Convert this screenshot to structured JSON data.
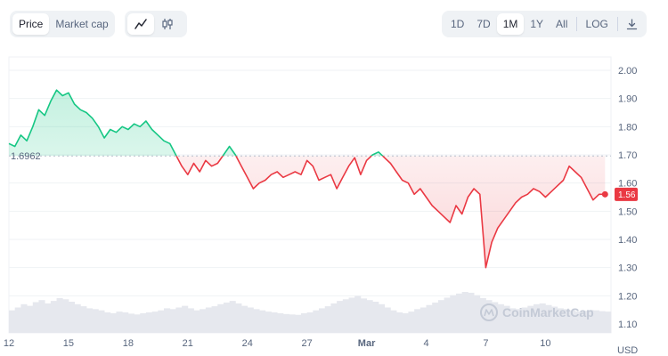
{
  "toolbar": {
    "metric_tabs": [
      {
        "label": "Price",
        "active": true
      },
      {
        "label": "Market cap",
        "active": false
      }
    ],
    "chart_types": [
      {
        "icon": "line-chart-icon",
        "active": true
      },
      {
        "icon": "candlestick-icon",
        "active": false
      }
    ],
    "ranges": [
      {
        "label": "1D",
        "active": false
      },
      {
        "label": "7D",
        "active": false
      },
      {
        "label": "1M",
        "active": true
      },
      {
        "label": "1Y",
        "active": false
      },
      {
        "label": "All",
        "active": false
      }
    ],
    "log_label": "LOG",
    "download_icon": "download-icon"
  },
  "watermark": {
    "text": "CoinMarketCap",
    "icon": "coinmarketcap-logo-icon"
  },
  "colors": {
    "up": "#16c784",
    "down": "#ea3943",
    "grid": "#eff2f5",
    "volume": "#e6e8ee"
  },
  "chart_data": {
    "type": "line",
    "title": "",
    "xlabel": "",
    "ylabel": "USD",
    "baseline": 1.6962,
    "baseline_label": "1.6962",
    "current": 1.56,
    "current_label": "1.56",
    "yticks": [
      "2.00",
      "1.90",
      "1.80",
      "1.70",
      "1.60",
      "1.50",
      "1.40",
      "1.30",
      "1.20",
      "1.10"
    ],
    "ylim": [
      1.1,
      2.0
    ],
    "xticks": [
      {
        "label": "12",
        "day": 0
      },
      {
        "label": "15",
        "day": 3
      },
      {
        "label": "18",
        "day": 6
      },
      {
        "label": "21",
        "day": 9
      },
      {
        "label": "24",
        "day": 12
      },
      {
        "label": "27",
        "day": 15
      },
      {
        "label": "Mar",
        "day": 18
      },
      {
        "label": "4",
        "day": 21
      },
      {
        "label": "7",
        "day": 24
      },
      {
        "label": "10",
        "day": 27
      }
    ],
    "xlim": [
      0,
      30.3
    ],
    "grid": true,
    "series": [
      {
        "x": [
          0,
          0.3,
          0.6,
          0.9,
          1.2,
          1.5,
          1.8,
          2.1,
          2.4,
          2.7,
          3.0,
          3.3,
          3.6,
          3.9,
          4.2,
          4.5,
          4.8,
          5.1,
          5.4,
          5.7,
          6.0,
          6.3,
          6.6,
          6.9,
          7.2,
          7.5,
          7.8,
          8.1,
          8.4,
          8.7,
          9.0,
          9.3,
          9.6,
          9.9,
          10.2,
          10.5,
          10.8,
          11.1,
          11.4,
          11.7,
          12.0,
          12.3,
          12.6,
          12.9,
          13.2,
          13.5,
          13.8,
          14.1,
          14.4,
          14.7,
          15.0,
          15.3,
          15.6,
          15.9,
          16.2,
          16.5,
          16.8,
          17.1,
          17.4,
          17.7,
          18.0,
          18.3,
          18.6,
          18.9,
          19.2,
          19.5,
          19.8,
          20.1,
          20.4,
          20.7,
          21.0,
          21.3,
          21.6,
          21.9,
          22.2,
          22.5,
          22.8,
          23.1,
          23.4,
          23.7,
          24.0,
          24.3,
          24.6,
          24.9,
          25.2,
          25.5,
          25.8,
          26.1,
          26.4,
          26.7,
          27.0,
          27.3,
          27.6,
          27.9,
          28.2,
          28.5,
          28.8,
          29.1,
          29.4,
          29.7,
          30.0
        ],
        "values": [
          1.74,
          1.73,
          1.77,
          1.75,
          1.8,
          1.86,
          1.84,
          1.89,
          1.93,
          1.91,
          1.92,
          1.88,
          1.86,
          1.85,
          1.83,
          1.8,
          1.76,
          1.79,
          1.78,
          1.8,
          1.79,
          1.81,
          1.8,
          1.82,
          1.79,
          1.77,
          1.75,
          1.74,
          1.7,
          1.66,
          1.63,
          1.67,
          1.64,
          1.68,
          1.66,
          1.67,
          1.7,
          1.73,
          1.7,
          1.66,
          1.62,
          1.58,
          1.6,
          1.61,
          1.63,
          1.64,
          1.62,
          1.63,
          1.64,
          1.63,
          1.68,
          1.66,
          1.61,
          1.62,
          1.63,
          1.58,
          1.62,
          1.66,
          1.69,
          1.63,
          1.68,
          1.7,
          1.71,
          1.69,
          1.67,
          1.64,
          1.61,
          1.6,
          1.56,
          1.58,
          1.55,
          1.52,
          1.5,
          1.48,
          1.46,
          1.52,
          1.49,
          1.55,
          1.58,
          1.56,
          1.3,
          1.39,
          1.44,
          1.47,
          1.5,
          1.53,
          1.55,
          1.56,
          1.58,
          1.57,
          1.55,
          1.57,
          1.59,
          1.61,
          1.66,
          1.64,
          1.62,
          1.58,
          1.54,
          1.56,
          1.56
        ]
      }
    ],
    "volume_relative": [
      0.55,
      0.62,
      0.7,
      0.66,
      0.75,
      0.8,
      0.72,
      0.78,
      0.85,
      0.82,
      0.76,
      0.7,
      0.65,
      0.6,
      0.58,
      0.55,
      0.5,
      0.48,
      0.52,
      0.5,
      0.47,
      0.45,
      0.48,
      0.5,
      0.52,
      0.55,
      0.6,
      0.58,
      0.62,
      0.66,
      0.6,
      0.55,
      0.58,
      0.62,
      0.65,
      0.7,
      0.74,
      0.78,
      0.72,
      0.66,
      0.62,
      0.58,
      0.55,
      0.52,
      0.5,
      0.48,
      0.46,
      0.45,
      0.44,
      0.48,
      0.5,
      0.55,
      0.6,
      0.65,
      0.72,
      0.78,
      0.82,
      0.86,
      0.9,
      0.84,
      0.8,
      0.76,
      0.7,
      0.62,
      0.55,
      0.5,
      0.48,
      0.52,
      0.58,
      0.62,
      0.68,
      0.74,
      0.8,
      0.86,
      0.92,
      0.96,
      1.0,
      0.98,
      0.92,
      0.85,
      0.8,
      0.75,
      0.7,
      0.66,
      0.6,
      0.58,
      0.62,
      0.66,
      0.7,
      0.72,
      0.68,
      0.64,
      0.6,
      0.58,
      0.55,
      0.52,
      0.54,
      0.56,
      0.55,
      0.53,
      0.52
    ],
    "legend": "none"
  }
}
